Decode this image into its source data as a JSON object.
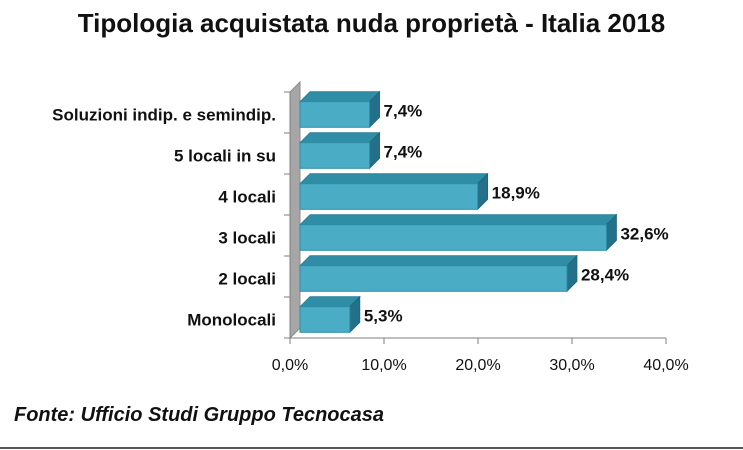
{
  "chart_data": {
    "type": "bar",
    "orientation": "horizontal",
    "title": "Tipologia acquistata nuda proprietà - Italia 2018",
    "categories": [
      "Soluzioni indip. e semindip.",
      "5 locali in su",
      "4 locali",
      "3 locali",
      "2 locali",
      "Monolocali"
    ],
    "values": [
      7.4,
      7.4,
      18.9,
      32.6,
      28.4,
      5.3
    ],
    "value_labels": [
      "7,4%",
      "7,4%",
      "18,9%",
      "32,6%",
      "28,4%",
      "5,3%"
    ],
    "x_ticks": [
      "0,0%",
      "10,0%",
      "20,0%",
      "30,0%",
      "40,0%"
    ],
    "xlim": [
      0,
      40
    ],
    "grid": false,
    "bar_color": "#4BACC6",
    "style": "3d"
  },
  "source": "Fonte: Ufficio Studi Gruppo Tecnocasa"
}
